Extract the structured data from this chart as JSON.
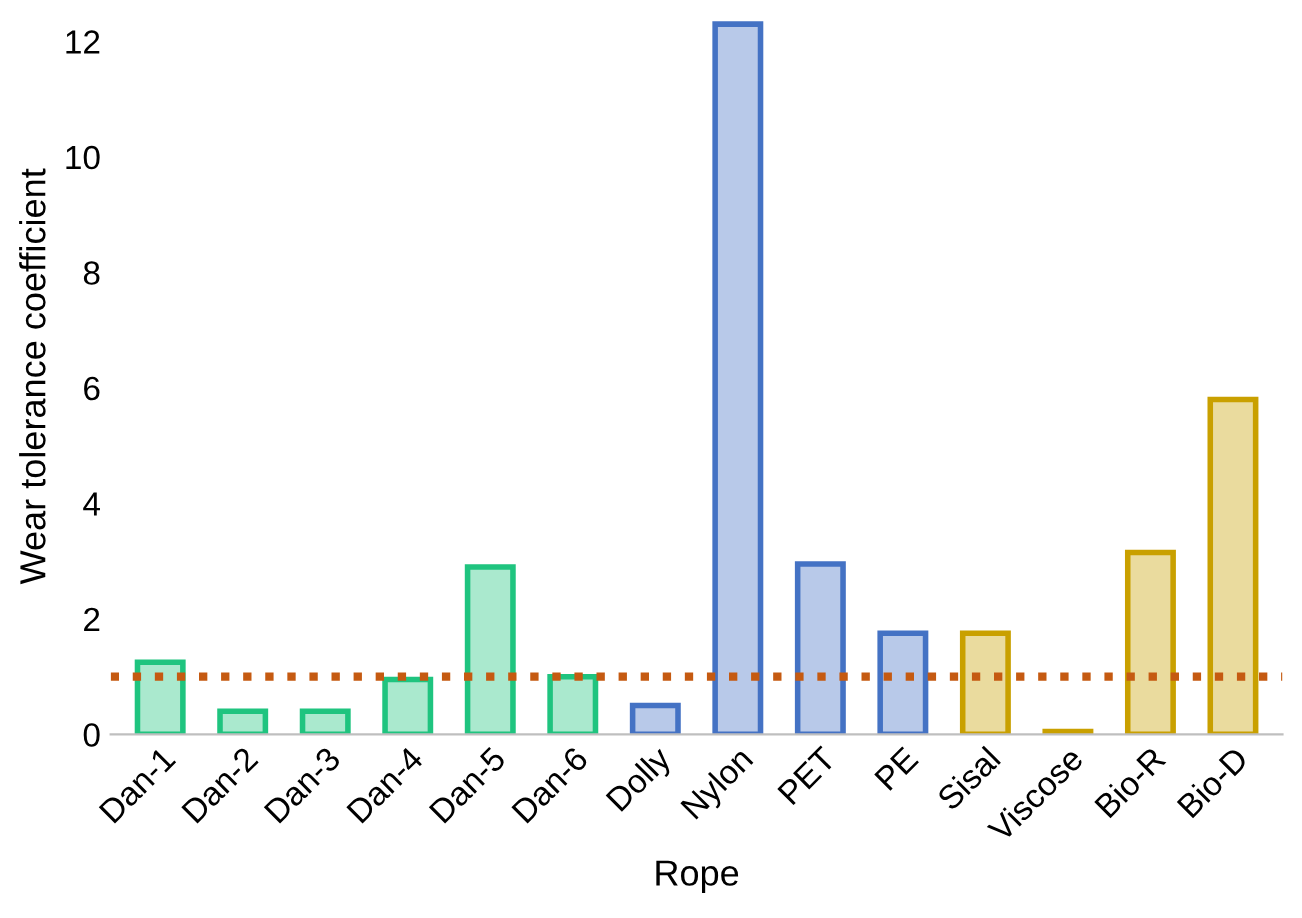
{
  "chart_data": {
    "type": "bar",
    "xlabel": "Rope",
    "ylabel": "Wear tolerance coefficient",
    "categories": [
      "Dan-1",
      "Dan-2",
      "Dan-3",
      "Dan-4",
      "Dan-5",
      "Dan-6",
      "Dolly",
      "Nylon",
      "PET",
      "PE",
      "Sisal",
      "Viscose",
      "Bio-R",
      "Bio-D"
    ],
    "values": [
      1.25,
      0.4,
      0.4,
      0.95,
      2.9,
      1.0,
      0.5,
      12.3,
      2.95,
      1.75,
      1.75,
      0.05,
      3.15,
      5.8
    ],
    "colors": [
      "#1fc47f",
      "#1fc47f",
      "#1fc47f",
      "#1fc47f",
      "#1fc47f",
      "#1fc47f",
      "#4472c4",
      "#4472c4",
      "#4472c4",
      "#4472c4",
      "#c9a000",
      "#c9a000",
      "#c9a000",
      "#c9a000"
    ],
    "ylim": [
      0,
      12.4
    ],
    "yticks": [
      0,
      2,
      4,
      6,
      8,
      10,
      12
    ],
    "grid": false,
    "legend": false,
    "ref_lines": [
      {
        "axis": "y",
        "value": 1.0,
        "label": null,
        "color": "#c55a11",
        "line_style": "dotted"
      }
    ]
  }
}
